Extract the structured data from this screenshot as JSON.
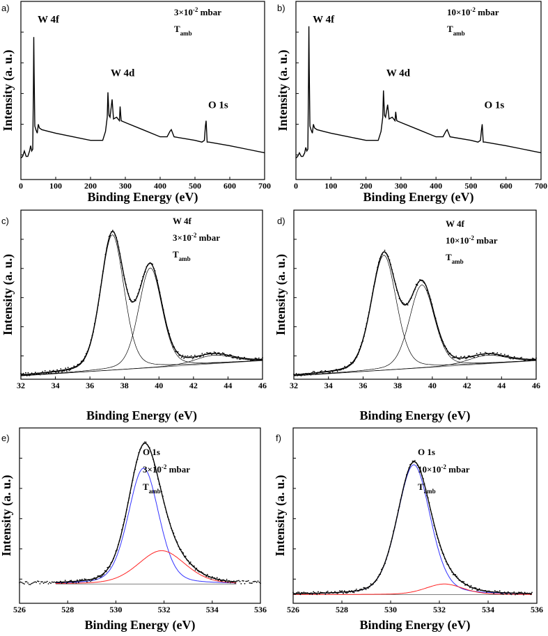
{
  "chart_data": [
    {
      "panel": "a)",
      "type": "line",
      "xlabel": "Binding Energy (eV)",
      "ylabel": "Intensity (a. u.)",
      "xlim": [
        0,
        700
      ],
      "ylim": [
        0,
        100
      ],
      "xticks": [
        0,
        100,
        200,
        300,
        400,
        500,
        600,
        700
      ],
      "conditions": [
        {
          "text": "3×10",
          "sup": "-2",
          "tail": " mbar"
        },
        {
          "text": "T",
          "sub": "amb",
          "tail": ""
        }
      ],
      "peak_labels": [
        {
          "text": "W 4f",
          "x": 40,
          "y": 88
        },
        {
          "text": "W 4d",
          "x": 250,
          "y": 58
        },
        {
          "text": "O 1s",
          "x": 530,
          "y": 40
        }
      ],
      "series": [
        {
          "name": "survey",
          "color": "#000000",
          "style": "line",
          "x": [
            0,
            5,
            10,
            15,
            20,
            25,
            28,
            31,
            34,
            36,
            37,
            38,
            40,
            43,
            47,
            50,
            53,
            60,
            80,
            100,
            150,
            200,
            235,
            243,
            248,
            250,
            253,
            256,
            262,
            266,
            275,
            283,
            285,
            288,
            300,
            350,
            400,
            420,
            428,
            432,
            440,
            500,
            520,
            527,
            530,
            532,
            535,
            540,
            600,
            650,
            700
          ],
          "y": [
            12,
            13,
            16,
            13,
            13,
            16,
            19,
            16,
            17,
            50,
            80,
            60,
            30,
            28,
            26,
            31,
            29,
            28,
            27,
            26,
            24,
            22,
            22,
            27,
            35,
            49,
            36,
            35,
            45,
            34,
            35,
            33,
            41,
            33,
            32,
            28,
            24,
            24,
            27,
            28,
            24,
            22,
            21,
            22,
            30,
            33,
            21,
            21,
            19,
            17,
            15
          ]
        }
      ]
    },
    {
      "panel": "b)",
      "type": "line",
      "xlabel": "Binding Energy (eV)",
      "ylabel": "Intensity (a. u.)",
      "xlim": [
        0,
        700
      ],
      "ylim": [
        0,
        100
      ],
      "xticks": [
        0,
        100,
        200,
        300,
        400,
        500,
        600,
        700
      ],
      "conditions": [
        {
          "text": "10×10",
          "sup": "-2",
          "tail": " mbar"
        },
        {
          "text": "T",
          "sub": "amb",
          "tail": ""
        }
      ],
      "peak_labels": [
        {
          "text": "W 4f",
          "x": 40,
          "y": 88
        },
        {
          "text": "W 4d",
          "x": 250,
          "y": 58
        },
        {
          "text": "O 1s",
          "x": 530,
          "y": 40
        }
      ],
      "series": [
        {
          "name": "survey",
          "color": "#000000",
          "style": "line",
          "x": [
            0,
            5,
            10,
            15,
            20,
            25,
            28,
            31,
            34,
            36,
            37,
            38,
            40,
            43,
            47,
            50,
            53,
            60,
            80,
            100,
            150,
            200,
            235,
            243,
            248,
            250,
            253,
            256,
            262,
            266,
            275,
            283,
            285,
            288,
            300,
            350,
            400,
            420,
            428,
            432,
            440,
            500,
            520,
            527,
            530,
            532,
            535,
            540,
            600,
            650,
            700
          ],
          "y": [
            12,
            13,
            15,
            13,
            13,
            15,
            18,
            16,
            17,
            55,
            86,
            62,
            30,
            28,
            26,
            31,
            29,
            28,
            27,
            26,
            24,
            22,
            22,
            27,
            35,
            50,
            36,
            35,
            42,
            34,
            35,
            33,
            38,
            33,
            32,
            28,
            24,
            24,
            27,
            28,
            24,
            22,
            21,
            22,
            28,
            31,
            21,
            21,
            19,
            17,
            15
          ]
        }
      ]
    },
    {
      "panel": "c)",
      "type": "line",
      "xlabel": "Binding Energy (eV)",
      "ylabel": "Intensity (a. u.)",
      "xlim": [
        32,
        46
      ],
      "ylim": [
        0,
        100
      ],
      "xticks": [
        32,
        34,
        36,
        38,
        40,
        42,
        44,
        46
      ],
      "conditions": [
        {
          "text": "W 4f",
          "tail": ""
        },
        {
          "text": "3×10",
          "sup": "-2",
          "tail": " mbar"
        },
        {
          "text": "T",
          "sub": "amb",
          "tail": ""
        }
      ],
      "baseline": [
        2,
        11
      ],
      "fit_range": [
        32,
        46
      ],
      "components": [
        {
          "center": 37.3,
          "amp": 80,
          "fwhm": 1.6,
          "color": "#000000"
        },
        {
          "center": 39.5,
          "amp": 59,
          "fwhm": 1.6,
          "color": "#000000"
        },
        {
          "center": 43.2,
          "amp": 5,
          "fwhm": 2.6,
          "color": "#000000"
        }
      ],
      "envelope_color": "#000000",
      "points_color": "#000000",
      "noise": 1.0
    },
    {
      "panel": "d)",
      "type": "line",
      "xlabel": "Binding Energy (eV)",
      "ylabel": "Intensity (a. u.)",
      "xlim": [
        32,
        46
      ],
      "ylim": [
        0,
        100
      ],
      "xticks": [
        32,
        34,
        36,
        38,
        40,
        42,
        44,
        46
      ],
      "conditions": [
        {
          "text": "W 4f",
          "tail": ""
        },
        {
          "text": "10×10",
          "sup": "-2",
          "tail": " mbar"
        },
        {
          "text": "T",
          "sub": "amb",
          "tail": ""
        }
      ],
      "baseline": [
        2,
        11
      ],
      "fit_range": [
        32,
        46
      ],
      "components": [
        {
          "center": 37.2,
          "amp": 68,
          "fwhm": 1.7,
          "color": "#000000"
        },
        {
          "center": 39.4,
          "amp": 49,
          "fwhm": 1.7,
          "color": "#000000"
        },
        {
          "center": 43.2,
          "amp": 5,
          "fwhm": 2.6,
          "color": "#000000"
        }
      ],
      "envelope_color": "#000000",
      "points_color": "#000000",
      "noise": 1.0
    },
    {
      "panel": "e)",
      "type": "line",
      "xlabel": "Binding Energy (eV)",
      "ylabel": "Intensity (a. u.)",
      "xlim": [
        526,
        536
      ],
      "ylim": [
        0,
        100
      ],
      "xticks": [
        526,
        528,
        530,
        532,
        534,
        536
      ],
      "conditions": [
        {
          "text": "O 1s",
          "tail": ""
        },
        {
          "text": "3×10",
          "sup": "-2",
          "tail": " mbar"
        },
        {
          "text": "T",
          "sub": "amb",
          "tail": ""
        }
      ],
      "baseline": [
        11,
        11
      ],
      "fit_range": [
        527.5,
        535
      ],
      "points_range": [
        526,
        536
      ],
      "components": [
        {
          "center": 531.15,
          "amp": 66,
          "fwhm": 1.5,
          "color": "#3333ff"
        },
        {
          "center": 531.9,
          "amp": 19,
          "fwhm": 2.3,
          "color": "#ff2222"
        }
      ],
      "envelope_color": "#000000",
      "points_color": "#000000",
      "noise": 1.0
    },
    {
      "panel": "f)",
      "type": "line",
      "xlabel": "Binding Energy (eV)",
      "ylabel": "Intensity (a. u.)",
      "xlim": [
        526,
        536
      ],
      "ylim": [
        0,
        100
      ],
      "xticks": [
        526,
        528,
        530,
        532,
        534,
        536
      ],
      "conditions": [
        {
          "text": "O 1s",
          "tail": ""
        },
        {
          "text": "10×10",
          "sup": "-2",
          "tail": " mbar"
        },
        {
          "text": "T",
          "sub": "amb",
          "tail": ""
        }
      ],
      "baseline": [
        5,
        5
      ],
      "fit_range": [
        526,
        535.8
      ],
      "points_range": [
        526,
        535.8
      ],
      "components": [
        {
          "center": 530.95,
          "amp": 74,
          "fwhm": 1.6,
          "color": "#3333ff"
        },
        {
          "center": 532.2,
          "amp": 6,
          "fwhm": 1.8,
          "color": "#ff2222"
        }
      ],
      "envelope_color": "#000000",
      "points_color": "#000000",
      "noise": 0.9
    }
  ]
}
